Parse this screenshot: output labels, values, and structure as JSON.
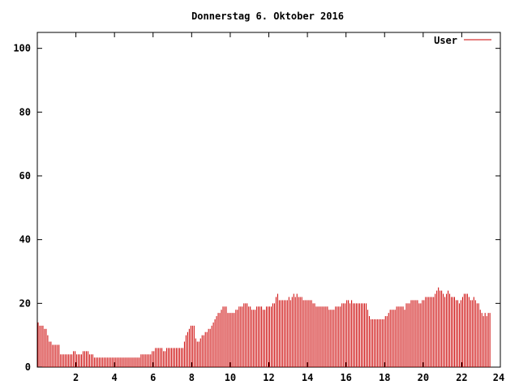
{
  "chart_data": {
    "type": "bar",
    "title": "Donnerstag 6. Oktober 2016",
    "xlabel": "",
    "ylabel": "",
    "xlim": [
      0,
      24
    ],
    "ylim": [
      0,
      105
    ],
    "x_ticks": [
      2,
      4,
      6,
      8,
      10,
      12,
      14,
      16,
      18,
      20,
      22,
      24
    ],
    "y_ticks": [
      0,
      20,
      40,
      60,
      80,
      100
    ],
    "grid": false,
    "legend_position": "top-right",
    "series": [
      {
        "name": "User",
        "color": "#cc0000",
        "interval_minutes": 5,
        "values": [
          14,
          13,
          13,
          13,
          12,
          12,
          10,
          8,
          8,
          7,
          7,
          7,
          7,
          7,
          4,
          4,
          4,
          4,
          4,
          4,
          4,
          4,
          5,
          5,
          4,
          4,
          4,
          4,
          5,
          5,
          5,
          5,
          4,
          4,
          4,
          3,
          3,
          3,
          3,
          3,
          3,
          3,
          3,
          3,
          3,
          3,
          3,
          3,
          3,
          3,
          3,
          3,
          3,
          3,
          3,
          3,
          3,
          3,
          3,
          3,
          3,
          3,
          3,
          3,
          4,
          4,
          4,
          4,
          4,
          4,
          4,
          5,
          5,
          6,
          6,
          6,
          6,
          6,
          5,
          5,
          6,
          6,
          6,
          6,
          6,
          6,
          6,
          6,
          6,
          6,
          6,
          8,
          10,
          11,
          12,
          13,
          13,
          13,
          9,
          8,
          8,
          9,
          10,
          10,
          11,
          11,
          12,
          12,
          13,
          14,
          15,
          16,
          17,
          17,
          18,
          19,
          19,
          19,
          17,
          17,
          17,
          17,
          17,
          18,
          18,
          19,
          19,
          19,
          20,
          20,
          20,
          19,
          19,
          18,
          18,
          18,
          19,
          19,
          19,
          19,
          18,
          18,
          19,
          19,
          19,
          19,
          20,
          20,
          22,
          23,
          21,
          21,
          21,
          21,
          21,
          21,
          22,
          21,
          22,
          23,
          22,
          23,
          22,
          22,
          22,
          21,
          21,
          21,
          21,
          21,
          21,
          20,
          20,
          19,
          19,
          19,
          19,
          19,
          19,
          19,
          19,
          18,
          18,
          18,
          18,
          19,
          19,
          19,
          19,
          20,
          20,
          20,
          21,
          21,
          20,
          21,
          20,
          20,
          20,
          20,
          20,
          20,
          20,
          20,
          20,
          18,
          16,
          15,
          15,
          15,
          15,
          15,
          15,
          15,
          15,
          15,
          16,
          16,
          17,
          18,
          18,
          18,
          18,
          19,
          19,
          19,
          19,
          19,
          18,
          20,
          20,
          20,
          21,
          21,
          21,
          21,
          21,
          20,
          20,
          21,
          21,
          22,
          22,
          22,
          22,
          22,
          22,
          23,
          24,
          25,
          24,
          24,
          23,
          22,
          23,
          24,
          23,
          22,
          22,
          22,
          21,
          21,
          20,
          21,
          22,
          23,
          23,
          23,
          22,
          21,
          21,
          22,
          21,
          20,
          20,
          18,
          17,
          16,
          17,
          16,
          17,
          17
        ]
      }
    ]
  }
}
